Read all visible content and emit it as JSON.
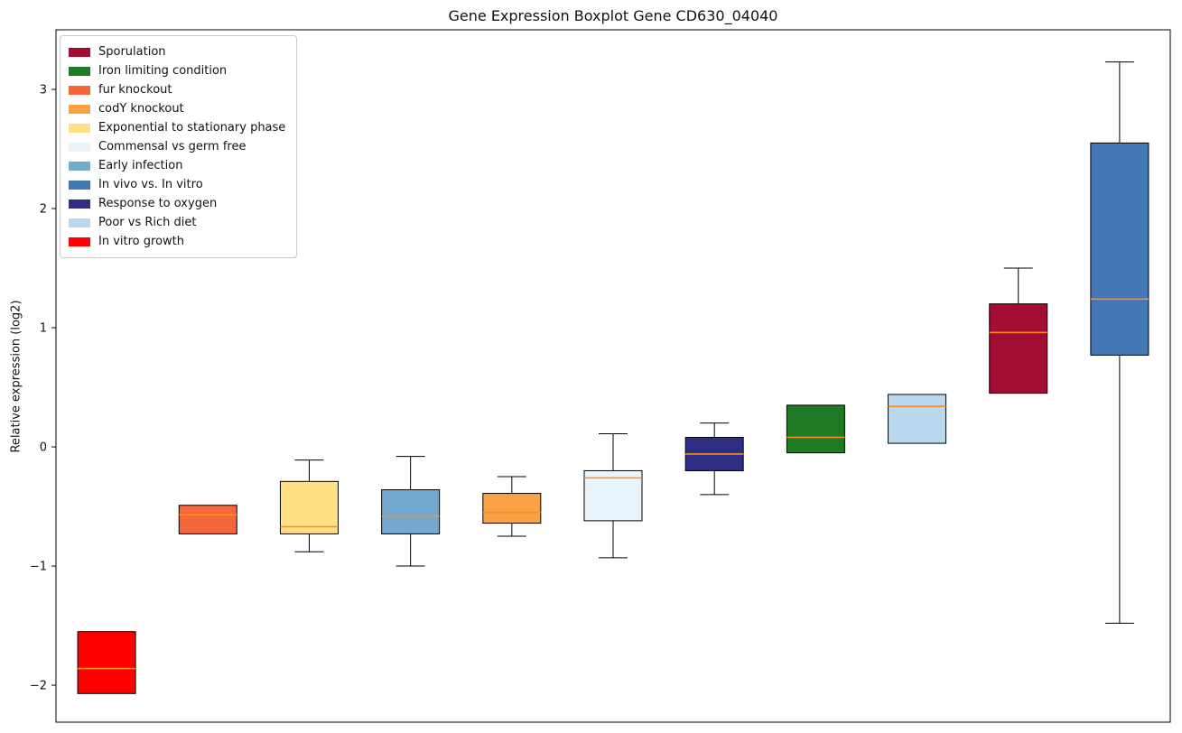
{
  "chart_data": {
    "type": "boxplot",
    "title": "Gene Expression Boxplot Gene CD630_04040",
    "ylabel": "Relative expression (log2)",
    "xlabel": "",
    "ylim": [
      -2.31,
      3.5
    ],
    "yticks": [
      -2,
      -1,
      0,
      1,
      2,
      3
    ],
    "grid": false,
    "legend_position": "upper left",
    "median_color": "#ff8c1a",
    "box_edge_color": "#000000",
    "groups": [
      {
        "name": "In vitro growth",
        "color": "#ff0000",
        "whislo": -2.07,
        "q1": -2.07,
        "med": -1.86,
        "q3": -1.55,
        "whishi": -1.55
      },
      {
        "name": "fur knockout",
        "color": "#f4663c",
        "whislo": -0.73,
        "q1": -0.73,
        "med": -0.57,
        "q3": -0.49,
        "whishi": -0.49
      },
      {
        "name": "Exponential to stationary phase",
        "color": "#ffe084",
        "whislo": -0.88,
        "q1": -0.73,
        "med": -0.67,
        "q3": -0.29,
        "whishi": -0.11
      },
      {
        "name": "Early infection",
        "color": "#74a9cf",
        "whislo": -1.0,
        "q1": -0.73,
        "med": -0.58,
        "q3": -0.36,
        "whishi": -0.08
      },
      {
        "name": "codY knockout",
        "color": "#f9a245",
        "whislo": -0.75,
        "q1": -0.64,
        "med": -0.55,
        "q3": -0.39,
        "whishi": -0.25
      },
      {
        "name": "Commensal vs germ free",
        "color": "#e8f4fb",
        "whislo": -0.93,
        "q1": -0.62,
        "med": -0.26,
        "q3": -0.2,
        "whishi": 0.11
      },
      {
        "name": "Response to oxygen",
        "color": "#2e2e85",
        "whislo": -0.4,
        "q1": -0.2,
        "med": -0.06,
        "q3": 0.08,
        "whishi": 0.2
      },
      {
        "name": "Iron limiting condition",
        "color": "#1f7a24",
        "whislo": -0.05,
        "q1": -0.05,
        "med": 0.08,
        "q3": 0.35,
        "whishi": 0.35
      },
      {
        "name": "Poor vs Rich diet",
        "color": "#b9d8ed",
        "whislo": 0.03,
        "q1": 0.03,
        "med": 0.34,
        "q3": 0.44,
        "whishi": 0.44
      },
      {
        "name": "Sporulation",
        "color": "#a30d33",
        "whislo": 0.45,
        "q1": 0.45,
        "med": 0.96,
        "q3": 1.2,
        "whishi": 1.5
      },
      {
        "name": "In vivo vs. In vitro",
        "color": "#4377b6",
        "whislo": -1.48,
        "q1": 0.77,
        "med": 1.24,
        "q3": 2.55,
        "whishi": 3.23
      }
    ],
    "legend": [
      {
        "label": "Sporulation",
        "color": "#a30d33"
      },
      {
        "label": "Iron limiting condition",
        "color": "#1f7a24"
      },
      {
        "label": "fur knockout",
        "color": "#f4663c"
      },
      {
        "label": "codY knockout",
        "color": "#f9a245"
      },
      {
        "label": "Exponential to stationary phase",
        "color": "#ffe084"
      },
      {
        "label": "Commensal vs germ free",
        "color": "#e8f4fb"
      },
      {
        "label": "Early infection",
        "color": "#74a9cf"
      },
      {
        "label": "In vivo vs. In vitro",
        "color": "#4377b6"
      },
      {
        "label": "Response to oxygen",
        "color": "#2e2e85"
      },
      {
        "label": "Poor vs Rich diet",
        "color": "#b9d8ed"
      },
      {
        "label": "In vitro growth",
        "color": "#ff0000"
      }
    ]
  }
}
